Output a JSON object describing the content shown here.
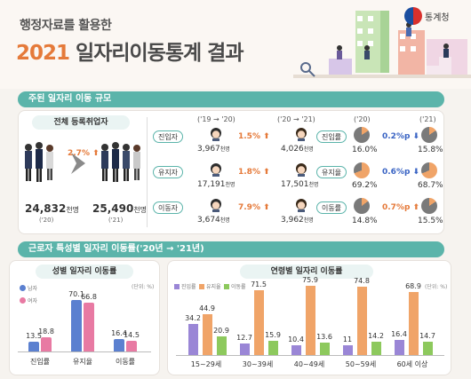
{
  "header": {
    "sub_title": "행정자료를 활용한",
    "year": "2021",
    "title_rest": "일자리이동통계 결과",
    "org": "통계청"
  },
  "section1": {
    "bar_title": "주된 일자리 이동 규모",
    "total_label": "전체 등록취업자",
    "total_2020": "24,832",
    "total_2021": "25,490",
    "unit": "천명",
    "year_20": "('20)",
    "year_21": "('21)",
    "total_rate": "2.7%",
    "head_19_20": "('19 → '20)",
    "head_20_21": "('20 → '21)",
    "head_20": "('20)",
    "head_21": "('21)",
    "rows": [
      {
        "cat": "진입자",
        "v20": "3,967",
        "rate": "1.5%",
        "v21": "4,026",
        "rcat": "진입률",
        "p20": "16.0%",
        "delta": "0.2%p",
        "p21": "15.8%",
        "pie20": 16.0,
        "pie21": 15.8,
        "up": false
      },
      {
        "cat": "유지자",
        "v20": "17,191",
        "rate": "1.8%",
        "v21": "17,501",
        "rcat": "유지율",
        "p20": "69.2%",
        "delta": "0.6%p",
        "p21": "68.7%",
        "pie20": 69.2,
        "pie21": 68.7,
        "up": false
      },
      {
        "cat": "이동자",
        "v20": "3,674",
        "rate": "7.9%",
        "v21": "3,962",
        "rcat": "이동률",
        "p20": "14.8%",
        "delta": "0.7%p",
        "p21": "15.5%",
        "pie20": 14.8,
        "pie21": 15.5,
        "up": true
      }
    ]
  },
  "section2": {
    "bar_title": "근로자 특성별 일자리 이동률('20년 → '21년)",
    "unit_note": "(단위: %)",
    "gender_chart": {
      "title": "성별 일자리 이동률",
      "legend": [
        "남자",
        "여자"
      ],
      "colors": {
        "male": "#5b80d0",
        "female": "#e87aa3"
      },
      "categories": [
        "진입률",
        "유지율",
        "이동률"
      ],
      "series": [
        {
          "name": "남자",
          "values": [
            13.5,
            70.1,
            16.4
          ]
        },
        {
          "name": "여자",
          "values": [
            18.8,
            66.8,
            14.5
          ]
        }
      ]
    },
    "age_chart": {
      "title": "연령별 일자리 이동률",
      "legend": [
        "진입률",
        "유지율",
        "이동률"
      ],
      "colors": {
        "entry": "#9a86d6",
        "stay": "#f0a468",
        "move": "#8dc95d"
      },
      "categories": [
        "15~29세",
        "30~39세",
        "40~49세",
        "50~59세",
        "60세 이상"
      ],
      "series": [
        {
          "name": "진입률",
          "values": [
            34.2,
            12.7,
            10.4,
            11.0,
            16.4
          ]
        },
        {
          "name": "유지율",
          "values": [
            44.9,
            71.5,
            75.9,
            74.8,
            68.9
          ]
        },
        {
          "name": "이동률",
          "values": [
            20.9,
            15.9,
            13.6,
            14.2,
            14.7
          ]
        }
      ]
    }
  }
}
